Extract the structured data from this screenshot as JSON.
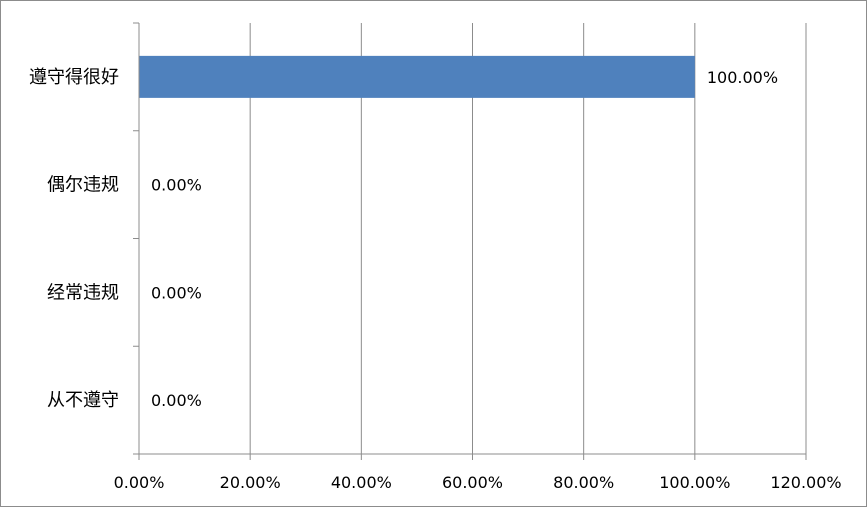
{
  "chart_data": {
    "type": "bar",
    "orientation": "horizontal",
    "categories": [
      "遵守得很好",
      "偶尔违规",
      "经常违规",
      "从不遵守"
    ],
    "values": [
      100.0,
      0.0,
      0.0,
      0.0
    ],
    "value_labels": [
      "100.00%",
      "0.00%",
      "0.00%",
      "0.00%"
    ],
    "xlim": [
      0,
      120
    ],
    "xticks": [
      0,
      20,
      40,
      60,
      80,
      100,
      120
    ],
    "xtick_labels": [
      "0.00%",
      "20.00%",
      "40.00%",
      "60.00%",
      "80.00%",
      "100.00%",
      "120.00%"
    ],
    "grid": true,
    "legend": "none",
    "bar_color": "#4f81bd",
    "title": "",
    "xlabel": "",
    "ylabel": ""
  }
}
